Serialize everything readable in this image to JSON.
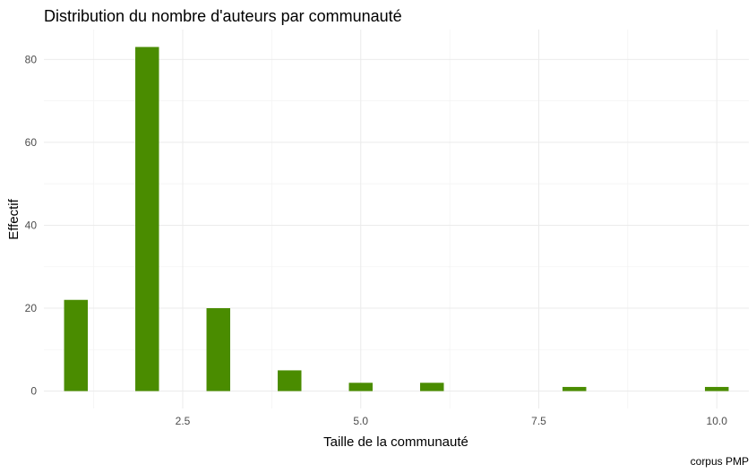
{
  "chart_data": {
    "type": "bar",
    "title": "Distribution du nombre d'auteurs par communauté",
    "xlabel": "Taille de la communauté",
    "ylabel": "Effectif",
    "caption": "corpus PMP",
    "x": [
      1,
      2,
      3,
      4,
      5,
      6,
      8,
      10
    ],
    "values": [
      22,
      83,
      20,
      5,
      2,
      2,
      1,
      1
    ],
    "xlim": [
      0.55,
      10.45
    ],
    "ylim": [
      -4.2,
      87.2
    ],
    "x_ticks": [
      2.5,
      5.0,
      7.5,
      10.0
    ],
    "x_tick_labels": [
      "2.5",
      "5.0",
      "7.5",
      "10.0"
    ],
    "y_ticks": [
      0,
      20,
      40,
      60,
      80
    ],
    "y_tick_labels": [
      "0",
      "20",
      "40",
      "60",
      "80"
    ],
    "grid": true,
    "legend": "none",
    "bar_color": "#4A8C00"
  }
}
